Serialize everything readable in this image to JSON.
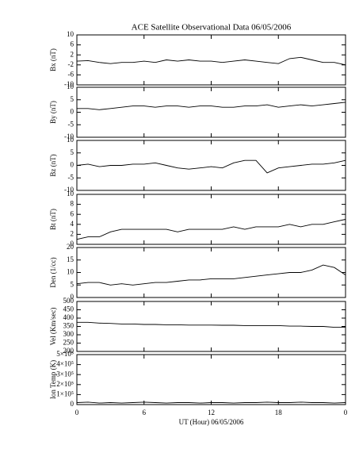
{
  "chart_data": [
    {
      "type": "line",
      "title": "ACE Satellite Observational Data   06/05/2006",
      "y_label": "Bx (nT)",
      "color": "#000000",
      "x": [
        0,
        1,
        2,
        3,
        4,
        5,
        6,
        7,
        8,
        9,
        10,
        11,
        12,
        13,
        14,
        15,
        16,
        17,
        18,
        19,
        20,
        21,
        22,
        23,
        24
      ],
      "values": [
        -0.5,
        -0.3,
        -1,
        -1.5,
        -1,
        -1,
        -0.5,
        -1,
        0,
        -0.5,
        0,
        -0.5,
        -0.5,
        -1,
        -0.5,
        0,
        -0.5,
        -1,
        -1.5,
        0.5,
        1,
        0,
        -1,
        -1,
        -2
      ],
      "xlim": [
        0,
        24
      ],
      "ylim": [
        -10,
        10
      ],
      "yticks": [
        -10,
        -6,
        -2,
        2,
        6,
        10
      ]
    },
    {
      "type": "line",
      "y_label": "By (nT)",
      "color": "#000000",
      "x": [
        0,
        1,
        2,
        3,
        4,
        5,
        6,
        7,
        8,
        9,
        10,
        11,
        12,
        13,
        14,
        15,
        16,
        17,
        18,
        19,
        20,
        21,
        22,
        23,
        24
      ],
      "values": [
        1.5,
        1.5,
        1,
        1.5,
        2,
        2.5,
        2.5,
        2,
        2.5,
        2.5,
        2,
        2.5,
        2.5,
        2,
        2,
        2.5,
        2.5,
        3,
        2,
        2.5,
        3,
        2.5,
        3,
        3.5,
        4
      ],
      "xlim": [
        0,
        24
      ],
      "ylim": [
        -10,
        10
      ],
      "yticks": [
        -10,
        -5,
        0,
        5,
        10
      ]
    },
    {
      "type": "line",
      "y_label": "Bz (nT)",
      "color": "#000000",
      "x": [
        0,
        1,
        2,
        3,
        4,
        5,
        6,
        7,
        8,
        9,
        10,
        11,
        12,
        13,
        14,
        15,
        16,
        17,
        18,
        19,
        20,
        21,
        22,
        23,
        24
      ],
      "values": [
        0,
        0.5,
        -0.5,
        0,
        0,
        0.5,
        0.5,
        1,
        0,
        -1,
        -1.5,
        -1,
        -0.5,
        -1,
        1,
        2,
        2,
        -3,
        -1,
        -0.5,
        0,
        0.5,
        0.5,
        1,
        2
      ],
      "xlim": [
        0,
        24
      ],
      "ylim": [
        -10,
        10
      ],
      "yticks": [
        -10,
        -5,
        0,
        5,
        10
      ]
    },
    {
      "type": "line",
      "y_label": "Bt (nT)",
      "color": "#000000",
      "x": [
        0,
        1,
        2,
        3,
        4,
        5,
        6,
        7,
        8,
        9,
        10,
        11,
        12,
        13,
        14,
        15,
        16,
        17,
        18,
        19,
        20,
        21,
        22,
        23,
        24
      ],
      "values": [
        1,
        1.5,
        1.5,
        2.5,
        3,
        3,
        3,
        3,
        3,
        2.5,
        3,
        3,
        3,
        3,
        3.5,
        3,
        3.5,
        3.5,
        3.5,
        4,
        3.5,
        4,
        4,
        4.5,
        5
      ],
      "xlim": [
        0,
        24
      ],
      "ylim": [
        0,
        10
      ],
      "yticks": [
        0,
        2,
        4,
        6,
        8,
        10
      ]
    },
    {
      "type": "line",
      "y_label": "Den (1/cc)",
      "color": "#000000",
      "x": [
        0,
        1,
        2,
        3,
        4,
        5,
        6,
        7,
        8,
        9,
        10,
        11,
        12,
        13,
        14,
        15,
        16,
        17,
        18,
        19,
        20,
        21,
        22,
        23,
        24
      ],
      "values": [
        5.5,
        6,
        6,
        5,
        5.5,
        5,
        5.5,
        6,
        6,
        6.5,
        7,
        7,
        7.5,
        7.5,
        7.5,
        8,
        8.5,
        9,
        9.5,
        10,
        10,
        11,
        13,
        12,
        9
      ],
      "xlim": [
        0,
        24
      ],
      "ylim": [
        0,
        20
      ],
      "yticks": [
        0,
        5,
        10,
        15,
        20
      ]
    },
    {
      "type": "line",
      "y_label": "Vel (Km/sec)",
      "color": "#000000",
      "x": [
        0,
        1,
        2,
        3,
        4,
        5,
        6,
        7,
        8,
        9,
        10,
        11,
        12,
        13,
        14,
        15,
        16,
        17,
        18,
        19,
        20,
        21,
        22,
        23,
        24
      ],
      "values": [
        375,
        375,
        370,
        368,
        365,
        365,
        362,
        362,
        360,
        360,
        358,
        358,
        358,
        357,
        357,
        355,
        355,
        355,
        355,
        352,
        352,
        350,
        350,
        345,
        345
      ],
      "xlim": [
        0,
        24
      ],
      "ylim": [
        200,
        500
      ],
      "yticks": [
        200,
        250,
        300,
        350,
        400,
        450,
        500
      ]
    },
    {
      "type": "line",
      "y_label": "Ion Temp (K)",
      "x_label": "UT (Hour)  06/05/2006",
      "color": "#000000",
      "x": [
        0,
        1,
        2,
        3,
        4,
        5,
        6,
        7,
        8,
        9,
        10,
        11,
        12,
        13,
        14,
        15,
        16,
        17,
        18,
        19,
        20,
        21,
        22,
        23,
        24
      ],
      "values": [
        20000,
        25000,
        15000,
        20000,
        15000,
        20000,
        25000,
        20000,
        15000,
        20000,
        20000,
        15000,
        20000,
        20000,
        15000,
        20000,
        20000,
        25000,
        20000,
        20000,
        25000,
        20000,
        20000,
        15000,
        20000
      ],
      "xlim": [
        0,
        24
      ],
      "ylim": [
        0,
        500000
      ],
      "yticks": [
        0,
        {
          "value": 100000,
          "label": "1×10⁵"
        },
        {
          "value": 200000,
          "label": "2×10⁵"
        },
        {
          "value": 300000,
          "label": "3×10⁵"
        },
        {
          "value": 400000,
          "label": "4×10⁵"
        },
        {
          "value": 500000,
          "label": "5×10⁵"
        }
      ],
      "xticks": [
        0,
        6,
        12,
        18,
        {
          "value": 24,
          "label": "0"
        }
      ]
    }
  ]
}
